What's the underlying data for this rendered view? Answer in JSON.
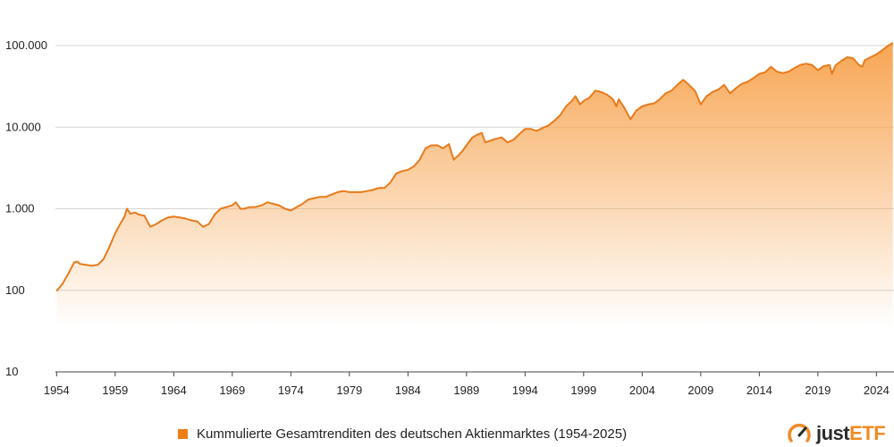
{
  "colors": {
    "line": "#e87b1c",
    "fill": "#f7a14a",
    "legend": "#ef7d15",
    "grid": "#d6d6d6",
    "brand_accent": "#f08a24",
    "brand_dark": "#2b2b2b"
  },
  "logo": {
    "part1": "just",
    "part2": "ETF",
    "icon": "speedometer-icon"
  },
  "chart_data": {
    "type": "area",
    "title": "",
    "xlabel": "",
    "ylabel": "",
    "yscale": "log",
    "ylim": [
      10,
      110000
    ],
    "xlim": [
      1953.9,
      2025.5
    ],
    "yticks": [
      10,
      100,
      1000,
      10000,
      100000
    ],
    "ytick_labels": [
      "10",
      "100",
      "1.000",
      "10.000",
      "100.000"
    ],
    "xticks": [
      1954,
      1959,
      1964,
      1969,
      1974,
      1979,
      1984,
      1989,
      1994,
      1999,
      2004,
      2009,
      2014,
      2019,
      2024
    ],
    "grid": true,
    "legend_position": "bottom",
    "series": [
      {
        "name": "Kummulierte Gesamtrenditen des deutschen Aktienmarktes (1954-2025)",
        "points": [
          [
            1954.0,
            98
          ],
          [
            1954.5,
            120
          ],
          [
            1955.0,
            160
          ],
          [
            1955.5,
            220
          ],
          [
            1955.8,
            225
          ],
          [
            1956.0,
            210
          ],
          [
            1956.5,
            205
          ],
          [
            1957.0,
            200
          ],
          [
            1957.5,
            205
          ],
          [
            1958.0,
            240
          ],
          [
            1958.5,
            340
          ],
          [
            1959.0,
            500
          ],
          [
            1959.5,
            680
          ],
          [
            1959.8,
            800
          ],
          [
            1960.0,
            1000
          ],
          [
            1960.3,
            870
          ],
          [
            1960.7,
            900
          ],
          [
            1961.0,
            850
          ],
          [
            1961.5,
            820
          ],
          [
            1962.0,
            600
          ],
          [
            1962.5,
            650
          ],
          [
            1963.0,
            720
          ],
          [
            1963.5,
            780
          ],
          [
            1964.0,
            800
          ],
          [
            1964.5,
            780
          ],
          [
            1965.0,
            760
          ],
          [
            1965.5,
            720
          ],
          [
            1966.0,
            700
          ],
          [
            1966.5,
            600
          ],
          [
            1967.0,
            650
          ],
          [
            1967.5,
            850
          ],
          [
            1968.0,
            1000
          ],
          [
            1968.5,
            1050
          ],
          [
            1969.0,
            1100
          ],
          [
            1969.3,
            1200
          ],
          [
            1969.7,
            1000
          ],
          [
            1970.0,
            1000
          ],
          [
            1970.5,
            1050
          ],
          [
            1971.0,
            1050
          ],
          [
            1971.5,
            1100
          ],
          [
            1972.0,
            1200
          ],
          [
            1972.5,
            1150
          ],
          [
            1973.0,
            1100
          ],
          [
            1973.5,
            1000
          ],
          [
            1974.0,
            950
          ],
          [
            1974.5,
            1050
          ],
          [
            1975.0,
            1150
          ],
          [
            1975.5,
            1300
          ],
          [
            1976.0,
            1350
          ],
          [
            1976.5,
            1400
          ],
          [
            1977.0,
            1400
          ],
          [
            1977.5,
            1500
          ],
          [
            1978.0,
            1600
          ],
          [
            1978.5,
            1650
          ],
          [
            1979.0,
            1600
          ],
          [
            1979.5,
            1600
          ],
          [
            1980.0,
            1600
          ],
          [
            1980.5,
            1650
          ],
          [
            1981.0,
            1700
          ],
          [
            1981.5,
            1800
          ],
          [
            1982.0,
            1800
          ],
          [
            1982.5,
            2100
          ],
          [
            1983.0,
            2700
          ],
          [
            1983.5,
            2900
          ],
          [
            1984.0,
            3000
          ],
          [
            1984.5,
            3300
          ],
          [
            1985.0,
            4000
          ],
          [
            1985.5,
            5500
          ],
          [
            1986.0,
            6000
          ],
          [
            1986.5,
            6000
          ],
          [
            1987.0,
            5500
          ],
          [
            1987.5,
            6200
          ],
          [
            1987.9,
            4000
          ],
          [
            1988.3,
            4500
          ],
          [
            1988.7,
            5200
          ],
          [
            1989.0,
            6000
          ],
          [
            1989.5,
            7500
          ],
          [
            1990.0,
            8200
          ],
          [
            1990.3,
            8500
          ],
          [
            1990.6,
            6500
          ],
          [
            1991.0,
            6800
          ],
          [
            1991.5,
            7200
          ],
          [
            1992.0,
            7500
          ],
          [
            1992.5,
            6500
          ],
          [
            1993.0,
            7000
          ],
          [
            1993.5,
            8200
          ],
          [
            1994.0,
            9500
          ],
          [
            1994.5,
            9500
          ],
          [
            1995.0,
            9000
          ],
          [
            1995.5,
            9800
          ],
          [
            1996.0,
            10500
          ],
          [
            1996.5,
            12000
          ],
          [
            1997.0,
            14000
          ],
          [
            1997.5,
            18000
          ],
          [
            1998.0,
            21000
          ],
          [
            1998.3,
            24000
          ],
          [
            1998.7,
            19000
          ],
          [
            1999.0,
            21000
          ],
          [
            1999.5,
            23000
          ],
          [
            2000.0,
            28000
          ],
          [
            2000.5,
            27000
          ],
          [
            2001.0,
            25000
          ],
          [
            2001.5,
            22000
          ],
          [
            2001.8,
            18000
          ],
          [
            2002.0,
            22000
          ],
          [
            2002.5,
            17000
          ],
          [
            2003.0,
            12500
          ],
          [
            2003.5,
            16000
          ],
          [
            2004.0,
            18000
          ],
          [
            2004.5,
            19000
          ],
          [
            2005.0,
            19500
          ],
          [
            2005.5,
            22000
          ],
          [
            2006.0,
            26000
          ],
          [
            2006.5,
            28000
          ],
          [
            2007.0,
            33000
          ],
          [
            2007.5,
            38000
          ],
          [
            2008.0,
            33000
          ],
          [
            2008.5,
            28000
          ],
          [
            2009.0,
            19000
          ],
          [
            2009.5,
            24000
          ],
          [
            2010.0,
            27000
          ],
          [
            2010.5,
            29000
          ],
          [
            2011.0,
            33000
          ],
          [
            2011.5,
            26000
          ],
          [
            2012.0,
            30000
          ],
          [
            2012.5,
            34000
          ],
          [
            2013.0,
            36000
          ],
          [
            2013.5,
            40000
          ],
          [
            2014.0,
            45000
          ],
          [
            2014.5,
            47000
          ],
          [
            2015.0,
            55000
          ],
          [
            2015.5,
            48000
          ],
          [
            2016.0,
            46000
          ],
          [
            2016.5,
            48000
          ],
          [
            2017.0,
            53000
          ],
          [
            2017.5,
            58000
          ],
          [
            2018.0,
            60000
          ],
          [
            2018.5,
            58000
          ],
          [
            2019.0,
            50000
          ],
          [
            2019.5,
            56000
          ],
          [
            2020.0,
            58000
          ],
          [
            2020.2,
            45000
          ],
          [
            2020.5,
            57000
          ],
          [
            2021.0,
            65000
          ],
          [
            2021.5,
            72000
          ],
          [
            2022.0,
            70000
          ],
          [
            2022.5,
            58000
          ],
          [
            2022.8,
            55000
          ],
          [
            2023.0,
            66000
          ],
          [
            2023.5,
            72000
          ],
          [
            2024.0,
            78000
          ],
          [
            2024.5,
            88000
          ],
          [
            2025.0,
            100000
          ],
          [
            2025.4,
            108000
          ]
        ]
      }
    ]
  }
}
